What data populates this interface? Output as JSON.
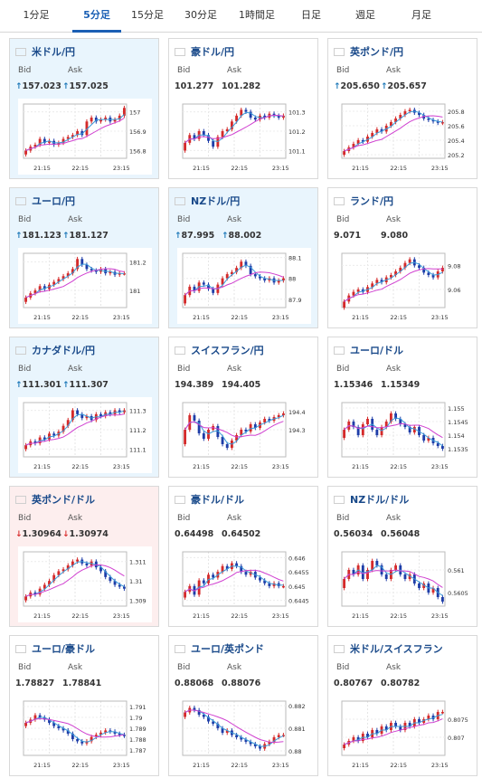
{
  "tabs": [
    "1分足",
    "5分足",
    "15分足",
    "30分足",
    "1時間足",
    "日足",
    "週足",
    "月足"
  ],
  "active_tab": 1,
  "labels": {
    "bid": "Bid",
    "ask": "Ask"
  },
  "colors": {
    "accent": "#1a5fb4",
    "up_candle": "#d42a2a",
    "down_candle": "#1e3da8",
    "ma_line": "#d040d0",
    "ma2_line": "#3a9ad9",
    "arrow_up": "#1a76b8",
    "arrow_down": "#d92e2e"
  },
  "cards": [
    {
      "name": "米ドル/円",
      "flag": "us-flag-icon",
      "highlight": "blue",
      "bid": "157.023",
      "ask": "157.025",
      "bid_arrow": "up",
      "ask_arrow": "up",
      "chart_data": {
        "type": "line",
        "x_ticks": [
          "21:15",
          "22:15",
          "23:15"
        ],
        "y_ticks": [
          "157",
          "156.9",
          "156.8"
        ],
        "ylim": [
          156.76,
          157.04
        ],
        "close": [
          156.8,
          156.82,
          156.83,
          156.86,
          156.84,
          156.85,
          156.83,
          156.84,
          156.86,
          156.87,
          156.88,
          156.9,
          156.88,
          156.95,
          156.97,
          156.95,
          156.96,
          156.97,
          156.95,
          156.96,
          156.98,
          157.02
        ]
      }
    },
    {
      "name": "豪ドル/円",
      "flag": "au-flag-icon",
      "highlight": "none",
      "bid": "101.277",
      "ask": "101.282",
      "bid_arrow": "none",
      "ask_arrow": "none",
      "chart_data": {
        "type": "line",
        "x_ticks": [
          "21:15",
          "22:15",
          "23:15"
        ],
        "y_ticks": [
          "101.3",
          "101.2",
          "101.1"
        ],
        "ylim": [
          101.06,
          101.34
        ],
        "close": [
          101.14,
          101.18,
          101.16,
          101.2,
          101.18,
          101.15,
          101.12,
          101.17,
          101.2,
          101.21,
          101.25,
          101.28,
          101.31,
          101.3,
          101.27,
          101.26,
          101.28,
          101.27,
          101.29,
          101.28,
          101.27,
          101.28
        ]
      }
    },
    {
      "name": "英ポンド/円",
      "flag": "uk-flag-icon",
      "highlight": "none",
      "bid": "205.650",
      "ask": "205.657",
      "bid_arrow": "up",
      "ask_arrow": "up",
      "chart_data": {
        "type": "line",
        "x_ticks": [
          "21:15",
          "22:15",
          "23:15"
        ],
        "y_ticks": [
          "205.8",
          "205.6",
          "205.4",
          "205.2"
        ],
        "ylim": [
          205.15,
          205.9
        ],
        "close": [
          205.25,
          205.3,
          205.35,
          205.4,
          205.38,
          205.45,
          205.5,
          205.55,
          205.52,
          205.6,
          205.65,
          205.7,
          205.75,
          205.8,
          205.82,
          205.78,
          205.75,
          205.7,
          205.68,
          205.66,
          205.64,
          205.65
        ]
      }
    },
    {
      "name": "ユーロ/円",
      "flag": "eu-flag-icon",
      "highlight": "blue",
      "bid": "181.123",
      "ask": "181.127",
      "bid_arrow": "up",
      "ask_arrow": "up",
      "chart_data": {
        "type": "line",
        "x_ticks": [
          "21:15",
          "22:15",
          "23:15"
        ],
        "y_ticks": [
          "181.2",
          "181"
        ],
        "ylim": [
          180.88,
          181.26
        ],
        "close": [
          180.95,
          180.98,
          181.0,
          181.03,
          181.01,
          181.04,
          181.06,
          181.08,
          181.1,
          181.12,
          181.15,
          181.22,
          181.18,
          181.15,
          181.14,
          181.13,
          181.15,
          181.12,
          181.13,
          181.11,
          181.12,
          181.12
        ]
      }
    },
    {
      "name": "NZドル/円",
      "flag": "nz-flag-icon",
      "highlight": "blue",
      "bid": "87.995",
      "ask": "88.002",
      "bid_arrow": "up",
      "ask_arrow": "up",
      "chart_data": {
        "type": "line",
        "x_ticks": [
          "21:15",
          "22:15",
          "23:15"
        ],
        "y_ticks": [
          "88.1",
          "88",
          "87.9"
        ],
        "ylim": [
          87.86,
          88.12
        ],
        "close": [
          87.92,
          87.96,
          87.94,
          87.98,
          87.97,
          87.95,
          87.93,
          87.97,
          88.0,
          88.02,
          88.03,
          88.05,
          88.08,
          88.06,
          88.02,
          88.01,
          88.0,
          87.99,
          88.0,
          87.98,
          87.99,
          88.0
        ]
      }
    },
    {
      "name": "ランド/円",
      "flag": "za-flag-icon",
      "highlight": "none",
      "bid": "9.071",
      "ask": "9.080",
      "bid_arrow": "none",
      "ask_arrow": "none",
      "chart_data": {
        "type": "line",
        "x_ticks": [
          "21:15",
          "22:15",
          "23:15"
        ],
        "y_ticks": [
          "9.08",
          "9.06"
        ],
        "ylim": [
          9.045,
          9.09
        ],
        "close": [
          9.05,
          9.055,
          9.058,
          9.06,
          9.058,
          9.062,
          9.065,
          9.068,
          9.066,
          9.07,
          9.072,
          9.075,
          9.078,
          9.082,
          9.085,
          9.08,
          9.078,
          9.074,
          9.072,
          9.07,
          9.075,
          9.078
        ]
      }
    },
    {
      "name": "カナダドル/円",
      "flag": "ca-flag-icon",
      "highlight": "blue",
      "bid": "111.301",
      "ask": "111.307",
      "bid_arrow": "up",
      "ask_arrow": "up",
      "chart_data": {
        "type": "line",
        "x_ticks": [
          "21:15",
          "22:15",
          "23:15"
        ],
        "y_ticks": [
          "111.3",
          "111.2",
          "111.1"
        ],
        "ylim": [
          111.06,
          111.34
        ],
        "close": [
          111.12,
          111.14,
          111.13,
          111.16,
          111.15,
          111.18,
          111.17,
          111.19,
          111.22,
          111.25,
          111.3,
          111.28,
          111.26,
          111.27,
          111.25,
          111.28,
          111.27,
          111.29,
          111.28,
          111.3,
          111.29,
          111.3
        ]
      }
    },
    {
      "name": "スイスフラン/円",
      "flag": "ch-flag-icon",
      "highlight": "none",
      "bid": "194.389",
      "ask": "194.405",
      "bid_arrow": "none",
      "ask_arrow": "none",
      "chart_data": {
        "type": "line",
        "x_ticks": [
          "21:15",
          "22:15",
          "23:15"
        ],
        "y_ticks": [
          "194.4",
          "194.3"
        ],
        "ylim": [
          194.15,
          194.45
        ],
        "close": [
          194.3,
          194.38,
          194.35,
          194.28,
          194.25,
          194.3,
          194.32,
          194.26,
          194.22,
          194.2,
          194.24,
          194.27,
          194.3,
          194.29,
          194.33,
          194.31,
          194.34,
          194.36,
          194.35,
          194.37,
          194.38,
          194.39
        ]
      }
    },
    {
      "name": "ユーロ/ドル",
      "flag": "eu-flag-icon",
      "highlight": "none",
      "bid": "1.15346",
      "ask": "1.15349",
      "bid_arrow": "none",
      "ask_arrow": "none",
      "chart_data": {
        "type": "line",
        "x_ticks": [
          "21:15",
          "22:15",
          "23:15"
        ],
        "y_ticks": [
          "1.155",
          "1.1545",
          "1.154",
          "1.1535"
        ],
        "ylim": [
          1.1532,
          1.1552
        ],
        "close": [
          1.1542,
          1.1545,
          1.1543,
          1.154,
          1.1544,
          1.1546,
          1.1542,
          1.154,
          1.1543,
          1.1545,
          1.1548,
          1.1546,
          1.1544,
          1.1543,
          1.1541,
          1.1543,
          1.154,
          1.1538,
          1.1539,
          1.1537,
          1.1536,
          1.1535
        ]
      }
    },
    {
      "name": "英ポンド/ドル",
      "flag": "uk-flag-icon",
      "highlight": "red",
      "bid": "1.30964",
      "ask": "1.30974",
      "bid_arrow": "down",
      "ask_arrow": "down",
      "chart_data": {
        "type": "line",
        "x_ticks": [
          "21:15",
          "22:15",
          "23:15"
        ],
        "y_ticks": [
          "1.311",
          "1.31",
          "1.309"
        ],
        "ylim": [
          1.3087,
          1.3115
        ],
        "close": [
          1.3092,
          1.3094,
          1.3093,
          1.3096,
          1.3098,
          1.31,
          1.3103,
          1.3105,
          1.3106,
          1.3108,
          1.311,
          1.3111,
          1.3109,
          1.3108,
          1.311,
          1.3107,
          1.3105,
          1.3102,
          1.31,
          1.3098,
          1.3097,
          1.3096
        ]
      }
    },
    {
      "name": "豪ドル/ドル",
      "flag": "au-flag-icon",
      "highlight": "none",
      "bid": "0.64498",
      "ask": "0.64502",
      "bid_arrow": "none",
      "ask_arrow": "none",
      "chart_data": {
        "type": "line",
        "x_ticks": [
          "21:15",
          "22:15",
          "23:15"
        ],
        "y_ticks": [
          "0.646",
          "0.6455",
          "0.645",
          "0.6445"
        ],
        "ylim": [
          0.6443,
          0.6462
        ],
        "close": [
          0.6448,
          0.645,
          0.6447,
          0.6452,
          0.6451,
          0.6454,
          0.6453,
          0.6455,
          0.6457,
          0.6456,
          0.6458,
          0.6457,
          0.6455,
          0.6454,
          0.6455,
          0.6453,
          0.6452,
          0.6451,
          0.645,
          0.6451,
          0.645,
          0.645
        ]
      }
    },
    {
      "name": "NZドル/ドル",
      "flag": "nz-flag-icon",
      "highlight": "none",
      "bid": "0.56034",
      "ask": "0.56048",
      "bid_arrow": "none",
      "ask_arrow": "none",
      "chart_data": {
        "type": "line",
        "x_ticks": [
          "21:15",
          "22:15",
          "23:15"
        ],
        "y_ticks": [
          "0.561",
          "0.5605"
        ],
        "ylim": [
          0.5602,
          0.5614
        ],
        "close": [
          0.5608,
          0.561,
          0.5609,
          0.5611,
          0.5608,
          0.561,
          0.5612,
          0.5611,
          0.5609,
          0.5608,
          0.561,
          0.5611,
          0.5609,
          0.5608,
          0.5609,
          0.5607,
          0.5606,
          0.5607,
          0.5605,
          0.5606,
          0.5604,
          0.5603
        ]
      }
    },
    {
      "name": "ユーロ/豪ドル",
      "flag": "eu-flag-icon",
      "highlight": "none",
      "bid": "1.78827",
      "ask": "1.78841",
      "bid_arrow": "none",
      "ask_arrow": "none",
      "chart_data": {
        "type": "line",
        "x_ticks": [
          "21:15",
          "22:15",
          "23:15"
        ],
        "y_ticks": [
          "1.791",
          "1.79",
          "1.789",
          "1.788",
          "1.787"
        ],
        "ylim": [
          1.7865,
          1.7915
        ],
        "close": [
          1.7895,
          1.7898,
          1.7902,
          1.79,
          1.7898,
          1.7895,
          1.7892,
          1.789,
          1.7888,
          1.7885,
          1.788,
          1.7878,
          1.7876,
          1.7878,
          1.7882,
          1.7884,
          1.7886,
          1.7888,
          1.7887,
          1.7885,
          1.7884,
          1.7883
        ]
      }
    },
    {
      "name": "ユーロ/英ポンド",
      "flag": "eu-flag-icon",
      "highlight": "none",
      "bid": "0.88068",
      "ask": "0.88076",
      "bid_arrow": "none",
      "ask_arrow": "none",
      "chart_data": {
        "type": "line",
        "x_ticks": [
          "21:15",
          "22:15",
          "23:15"
        ],
        "y_ticks": [
          "0.882",
          "0.881",
          "0.88"
        ],
        "ylim": [
          0.8798,
          0.8822
        ],
        "close": [
          0.8817,
          0.8819,
          0.8818,
          0.8816,
          0.8815,
          0.8813,
          0.8812,
          0.881,
          0.8808,
          0.8809,
          0.8807,
          0.8806,
          0.8805,
          0.8804,
          0.8803,
          0.8802,
          0.8801,
          0.8803,
          0.8804,
          0.8806,
          0.8807,
          0.8807
        ]
      }
    },
    {
      "name": "米ドル/スイスフラン",
      "flag": "us-flag-icon",
      "highlight": "none",
      "bid": "0.80767",
      "ask": "0.80782",
      "bid_arrow": "none",
      "ask_arrow": "none",
      "chart_data": {
        "type": "line",
        "x_ticks": [
          "21:15",
          "22:15",
          "23:15"
        ],
        "y_ticks": [
          "0.8075",
          "0.807"
        ],
        "ylim": [
          0.8065,
          0.808
        ],
        "close": [
          0.8068,
          0.8069,
          0.807,
          0.8069,
          0.8071,
          0.807,
          0.8072,
          0.8071,
          0.8073,
          0.8072,
          0.8074,
          0.8073,
          0.8072,
          0.8074,
          0.8073,
          0.8075,
          0.8074,
          0.8075,
          0.8076,
          0.8075,
          0.8077,
          0.8077
        ]
      }
    }
  ]
}
